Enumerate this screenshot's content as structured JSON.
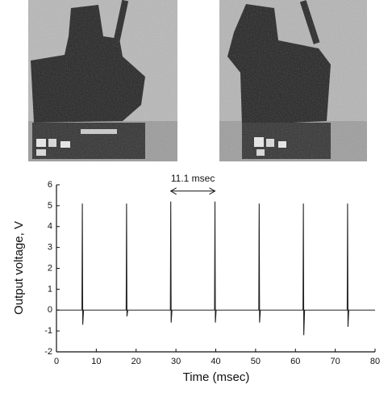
{
  "chart_data": {
    "type": "line",
    "xlabel": "Time (msec)",
    "ylabel": "Output voltage, V",
    "x": [
      0,
      6.4,
      6.5,
      6.6,
      6.8,
      17.5,
      17.6,
      17.7,
      17.9,
      28.6,
      28.7,
      28.8,
      29.0,
      39.7,
      39.8,
      39.9,
      40.1,
      50.8,
      50.9,
      51.0,
      51.2,
      61.9,
      62.0,
      62.1,
      62.3,
      73.0,
      73.1,
      73.2,
      73.4,
      80
    ],
    "values": [
      0,
      0,
      5.1,
      -0.7,
      0,
      0,
      5.1,
      -0.3,
      0,
      0,
      5.2,
      -0.6,
      0,
      0,
      5.2,
      -0.6,
      0,
      0,
      5.1,
      -0.6,
      0,
      0,
      5.1,
      -1.2,
      0,
      0,
      5.1,
      -0.8,
      0,
      0
    ],
    "color": "#222222",
    "xlim": [
      0,
      80
    ],
    "xticks": [
      0,
      10,
      20,
      30,
      40,
      50,
      60,
      70,
      80
    ],
    "ylim": [
      -2,
      6
    ],
    "yticks": [
      -2,
      -1,
      0,
      1,
      2,
      3,
      4,
      5,
      6
    ],
    "annotation": {
      "text": "11.1 msec",
      "x": [
        28.7,
        39.8
      ],
      "y": 5.7
    }
  }
}
